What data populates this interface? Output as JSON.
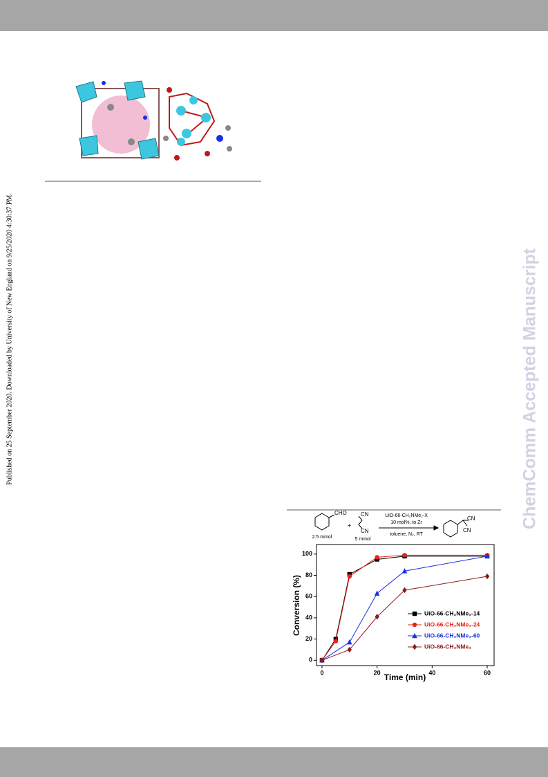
{
  "side_note": "Published on 25 September 2020. Downloaded by University of New England on 9/25/2020 4:30:37 PM.",
  "watermark": "ChemComm Accepted Manuscript",
  "scheme": {
    "reactant_1": "CHO",
    "reactant_2_top": "CN",
    "reactant_2_bottom": "CN",
    "plus": "+",
    "amount_1": "2.5 mmol",
    "amount_2": "5 mmol",
    "catalyst": "UiO-66-CH₂NMe₂-X",
    "loading": "10 mol%, to Zr",
    "conditions": "toluene, N₂, RT",
    "product_top": "CN",
    "product_bottom": "CN"
  },
  "chart_data": {
    "type": "line",
    "x_label": "Time (min)",
    "y_label": "Conversion (%)",
    "xlim": [
      -2,
      62.5
    ],
    "ylim": [
      -5,
      109
    ],
    "xticks": [
      0,
      20,
      40,
      60
    ],
    "yticks": [
      0,
      20,
      40,
      60,
      80,
      100
    ],
    "legend": "lower right",
    "series": [
      {
        "name": "UiO-66-CH₂NMe₂-14",
        "color": "#000000",
        "marker": "square",
        "x": [
          0,
          5,
          10,
          20,
          30,
          60
        ],
        "values": [
          0,
          20,
          81,
          95,
          98,
          98
        ]
      },
      {
        "name": "UiO-66-CH₂NMe₂-24",
        "color": "#e8211c",
        "marker": "circle",
        "x": [
          0,
          5,
          10,
          20,
          30,
          60
        ],
        "values": [
          0,
          18,
          79,
          97,
          99,
          99
        ]
      },
      {
        "name": "UiO-66-CH₂NMe₂-60",
        "color": "#1a2ee8",
        "marker": "triangle",
        "x": [
          0,
          10,
          20,
          30,
          60
        ],
        "values": [
          0,
          17,
          63,
          84,
          98
        ]
      },
      {
        "name": "UiO-66-CH₂NMe₂",
        "color": "#8b1a1a",
        "marker": "diamond",
        "x": [
          0,
          10,
          20,
          30,
          60
        ],
        "values": [
          0,
          10,
          41,
          66,
          79
        ]
      }
    ]
  }
}
